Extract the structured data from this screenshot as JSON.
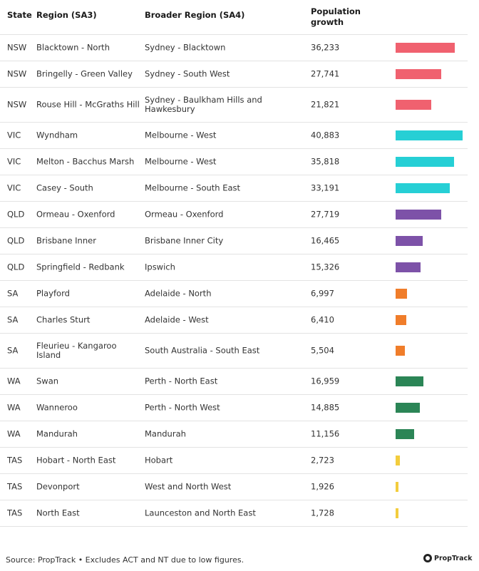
{
  "headers": {
    "state": "State",
    "region": "Region (SA3)",
    "broader": "Broader Region (SA4)",
    "population": "Population growth"
  },
  "colors": {
    "NSW": "#f0616f",
    "VIC": "#26cfd5",
    "QLD": "#7d52a8",
    "SA": "#f07d2a",
    "WA": "#2b8556",
    "TAS": "#f3cd3d"
  },
  "chart_data": {
    "type": "table",
    "columns": [
      "State",
      "Region (SA3)",
      "Broader Region (SA4)",
      "Population growth"
    ],
    "rows": [
      {
        "state": "NSW",
        "region": "Blacktown - North",
        "broader": "Sydney - Blacktown",
        "population": 36233,
        "population_label": "36,233"
      },
      {
        "state": "NSW",
        "region": "Bringelly - Green Valley",
        "broader": "Sydney - South West",
        "population": 27741,
        "population_label": "27,741"
      },
      {
        "state": "NSW",
        "region": "Rouse Hill - McGraths Hill",
        "broader": "Sydney - Baulkham Hills and Hawkesbury",
        "population": 21821,
        "population_label": "21,821"
      },
      {
        "state": "VIC",
        "region": "Wyndham",
        "broader": "Melbourne - West",
        "population": 40883,
        "population_label": "40,883"
      },
      {
        "state": "VIC",
        "region": "Melton - Bacchus Marsh",
        "broader": "Melbourne - West",
        "population": 35818,
        "population_label": "35,818"
      },
      {
        "state": "VIC",
        "region": "Casey - South",
        "broader": "Melbourne - South East",
        "population": 33191,
        "population_label": "33,191"
      },
      {
        "state": "QLD",
        "region": "Ormeau - Oxenford",
        "broader": "Ormeau - Oxenford",
        "population": 27719,
        "population_label": "27,719"
      },
      {
        "state": "QLD",
        "region": "Brisbane Inner",
        "broader": "Brisbane Inner City",
        "population": 16465,
        "population_label": "16,465"
      },
      {
        "state": "QLD",
        "region": "Springfield - Redbank",
        "broader": "Ipswich",
        "population": 15326,
        "population_label": "15,326"
      },
      {
        "state": "SA",
        "region": "Playford",
        "broader": "Adelaide - North",
        "population": 6997,
        "population_label": "6,997"
      },
      {
        "state": "SA",
        "region": "Charles Sturt",
        "broader": "Adelaide - West",
        "population": 6410,
        "population_label": "6,410"
      },
      {
        "state": "SA",
        "region": "Fleurieu - Kangaroo Island",
        "broader": "South Australia - South East",
        "population": 5504,
        "population_label": "5,504"
      },
      {
        "state": "WA",
        "region": "Swan",
        "broader": "Perth - North East",
        "population": 16959,
        "population_label": "16,959"
      },
      {
        "state": "WA",
        "region": "Wanneroo",
        "broader": "Perth - North West",
        "population": 14885,
        "population_label": "14,885"
      },
      {
        "state": "WA",
        "region": "Mandurah",
        "broader": "Mandurah",
        "population": 11156,
        "population_label": "11,156"
      },
      {
        "state": "TAS",
        "region": "Hobart - North East",
        "broader": "Hobart",
        "population": 2723,
        "population_label": "2,723"
      },
      {
        "state": "TAS",
        "region": "Devonport",
        "broader": "West and North West",
        "population": 1926,
        "population_label": "1,926"
      },
      {
        "state": "TAS",
        "region": "North East",
        "broader": "Launceston and North East",
        "population": 1728,
        "population_label": "1,728"
      }
    ]
  },
  "footer": {
    "source": "Source: PropTrack • Excludes ACT and NT due to low figures.",
    "logo_text": "PropTrack"
  }
}
